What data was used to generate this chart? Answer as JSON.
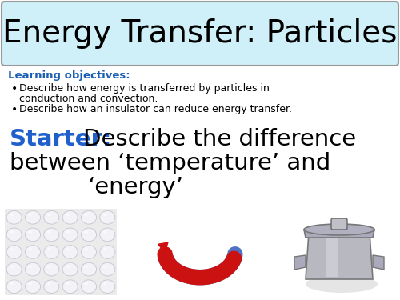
{
  "title": "Energy Transfer: Particles",
  "title_bg": "#cff0f8",
  "title_border": "#999999",
  "title_fontsize": 28,
  "lo_label": "Learning objectives:",
  "lo_color": "#1a5fb4",
  "lo_fontsize": 9.5,
  "bullet1_line1": "Describe how energy is transferred by particles in",
  "bullet1_line2": "conduction and convection.",
  "bullet2": "Describe how an insulator can reduce energy transfer.",
  "bullet_fontsize": 9,
  "starter_label": "Starter:",
  "starter_color": "#2060cc",
  "starter_fontsize": 21,
  "starter_rest_fontsize": 21,
  "bg_color": "#ffffff",
  "arrow_blue": "#4f72c4",
  "arrow_red": "#cc1111",
  "bubble_bg": "#ebebeb",
  "bubble_edge": "#c8c8d4",
  "bubble_fill": "#f4f4f8"
}
